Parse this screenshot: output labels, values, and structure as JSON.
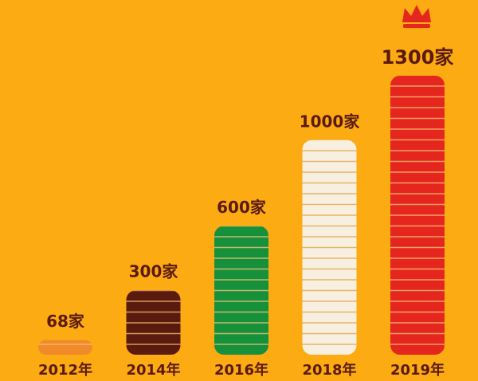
{
  "chart_data": {
    "type": "bar",
    "categories": [
      "2012年",
      "2014年",
      "2016年",
      "2018年",
      "2019年"
    ],
    "values": [
      68,
      300,
      600,
      1000,
      1300
    ],
    "value_labels": [
      "68家",
      "300家",
      "600家",
      "1000家",
      "1300家"
    ],
    "colors": [
      "#f08a2a",
      "#5a1a0e",
      "#17903c",
      "#f7efdf",
      "#e4261f"
    ]
  }
}
